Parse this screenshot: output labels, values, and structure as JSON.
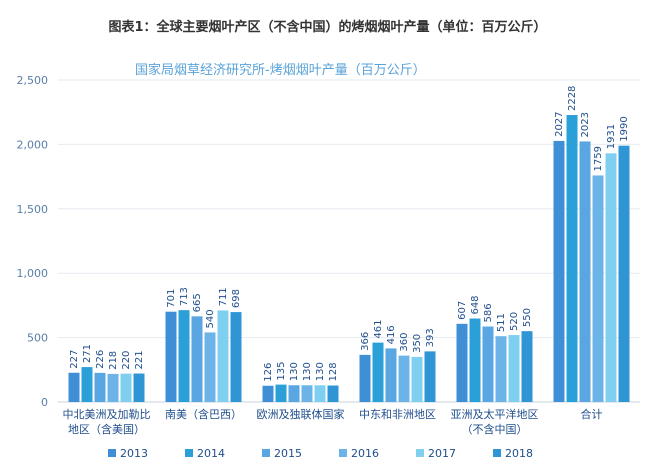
{
  "header": {
    "title": "图表1：全球主要烟叶产区（不含中国）的烤烟烟叶产量（单位：百万公斤）"
  },
  "chart_data": {
    "type": "bar",
    "title": "国家局烟草经济研究所-烤烟烟叶产量（百万公斤）",
    "categories": [
      [
        "中北美洲及加勒比",
        "地区（含美国）"
      ],
      [
        "南美（含巴西）"
      ],
      [
        "欧洲及独联体国家"
      ],
      [
        "中东和非洲地区"
      ],
      [
        "亚洲及太平洋地区",
        "（不含中国）"
      ],
      [
        "合计"
      ]
    ],
    "series": [
      {
        "name": "2013",
        "color": "#3e8fd6",
        "values": [
          227,
          701,
          126,
          366,
          607,
          2027
        ]
      },
      {
        "name": "2014",
        "color": "#2a9fd8",
        "values": [
          271,
          713,
          135,
          461,
          648,
          2228
        ]
      },
      {
        "name": "2015",
        "color": "#5aa6e2",
        "values": [
          226,
          665,
          130,
          416,
          586,
          2023
        ]
      },
      {
        "name": "2016",
        "color": "#6cb4e8",
        "values": [
          218,
          540,
          130,
          360,
          511,
          1759
        ]
      },
      {
        "name": "2017",
        "color": "#7fd0f0",
        "values": [
          220,
          711,
          130,
          350,
          520,
          1931
        ]
      },
      {
        "name": "2018",
        "color": "#2f95d4",
        "values": [
          221,
          698,
          128,
          393,
          550,
          1990
        ]
      }
    ],
    "ylim": [
      0,
      2500
    ],
    "yticks": [
      0,
      500,
      1000,
      1500,
      2000,
      2500
    ],
    "ytick_labels": [
      "0",
      "500",
      "1,000",
      "1,500",
      "2,000",
      "2,500"
    ],
    "grid": true,
    "legend_position": "bottom"
  }
}
